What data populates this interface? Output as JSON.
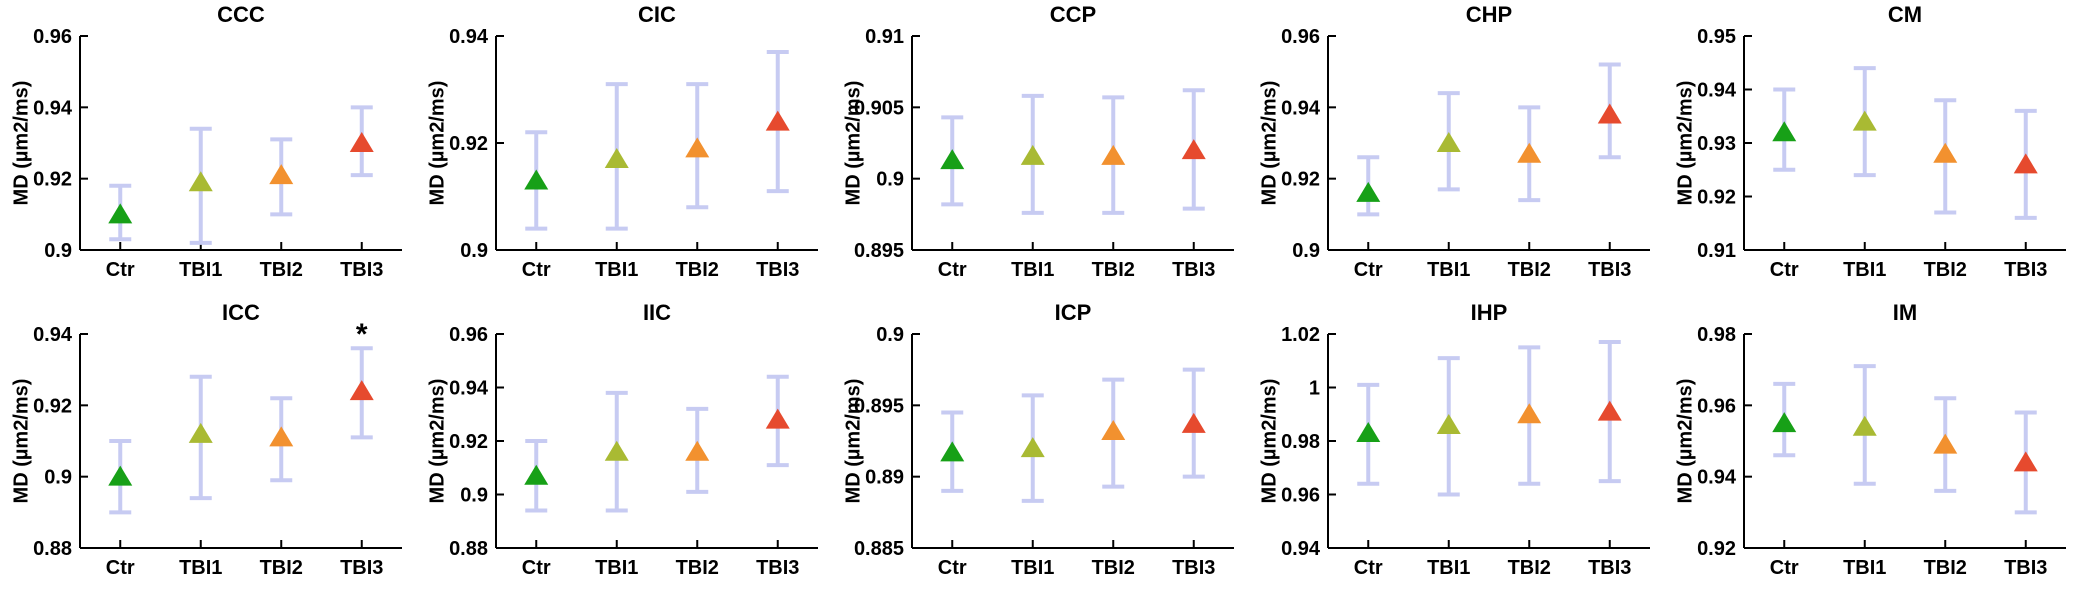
{
  "style": {
    "marker_colors": [
      "#17a017",
      "#a9ba33",
      "#f2912f",
      "#e64a2e"
    ],
    "errorbar_color": "#c7cbf2",
    "axis_color": "#000000"
  },
  "chart_data": [
    {
      "type": "scatter",
      "title": "CCC",
      "ylabel": "MD (µm2/ms)",
      "categories": [
        "Ctr",
        "TBI1",
        "TBI2",
        "TBI3"
      ],
      "ylim": [
        0.9,
        0.96
      ],
      "yticks": [
        0.9,
        0.92,
        0.94,
        0.96
      ],
      "values": [
        0.91,
        0.919,
        0.921,
        0.93
      ],
      "err_lo": [
        0.903,
        0.902,
        0.91,
        0.921
      ],
      "err_hi": [
        0.918,
        0.934,
        0.931,
        0.94
      ],
      "annotation": null
    },
    {
      "type": "scatter",
      "title": "CIC",
      "ylabel": "MD (µm2/ms)",
      "categories": [
        "Ctr",
        "TBI1",
        "TBI2",
        "TBI3"
      ],
      "ylim": [
        0.9,
        0.94
      ],
      "yticks": [
        0.9,
        0.92,
        0.94
      ],
      "values": [
        0.913,
        0.917,
        0.919,
        0.924
      ],
      "err_lo": [
        0.904,
        0.904,
        0.908,
        0.911
      ],
      "err_hi": [
        0.922,
        0.931,
        0.931,
        0.937
      ],
      "annotation": null
    },
    {
      "type": "scatter",
      "title": "CCP",
      "ylabel": "MD (µm2/ms)",
      "categories": [
        "Ctr",
        "TBI1",
        "TBI2",
        "TBI3"
      ],
      "ylim": [
        0.895,
        0.91
      ],
      "yticks": [
        0.895,
        0.9,
        0.905,
        0.91
      ],
      "values": [
        0.9013,
        0.9016,
        0.9016,
        0.902
      ],
      "err_lo": [
        0.8982,
        0.8976,
        0.8976,
        0.8979
      ],
      "err_hi": [
        0.9043,
        0.9058,
        0.9057,
        0.9062
      ],
      "annotation": null
    },
    {
      "type": "scatter",
      "title": "CHP",
      "ylabel": "MD (µm2/ms)",
      "categories": [
        "Ctr",
        "TBI1",
        "TBI2",
        "TBI3"
      ],
      "ylim": [
        0.9,
        0.96
      ],
      "yticks": [
        0.9,
        0.92,
        0.94,
        0.96
      ],
      "values": [
        0.916,
        0.93,
        0.927,
        0.938
      ],
      "err_lo": [
        0.91,
        0.917,
        0.914,
        0.926
      ],
      "err_hi": [
        0.926,
        0.944,
        0.94,
        0.952
      ],
      "annotation": null
    },
    {
      "type": "scatter",
      "title": "CM",
      "ylabel": "MD (µm2/ms)",
      "categories": [
        "Ctr",
        "TBI1",
        "TBI2",
        "TBI3"
      ],
      "ylim": [
        0.91,
        0.95
      ],
      "yticks": [
        0.91,
        0.92,
        0.93,
        0.94,
        0.95
      ],
      "values": [
        0.932,
        0.934,
        0.928,
        0.926
      ],
      "err_lo": [
        0.925,
        0.924,
        0.917,
        0.916
      ],
      "err_hi": [
        0.94,
        0.944,
        0.938,
        0.936
      ],
      "annotation": null
    },
    {
      "type": "scatter",
      "title": "ICC",
      "ylabel": "MD (µm2/ms)",
      "categories": [
        "Ctr",
        "TBI1",
        "TBI2",
        "TBI3"
      ],
      "ylim": [
        0.88,
        0.94
      ],
      "yticks": [
        0.88,
        0.9,
        0.92,
        0.94
      ],
      "values": [
        0.9,
        0.912,
        0.911,
        0.924
      ],
      "err_lo": [
        0.89,
        0.894,
        0.899,
        0.911
      ],
      "err_hi": [
        0.91,
        0.928,
        0.922,
        0.936
      ],
      "annotation": {
        "text": "*",
        "category_index": 3
      }
    },
    {
      "type": "scatter",
      "title": "IIC",
      "ylabel": "MD (µm2/ms)",
      "categories": [
        "Ctr",
        "TBI1",
        "TBI2",
        "TBI3"
      ],
      "ylim": [
        0.88,
        0.96
      ],
      "yticks": [
        0.88,
        0.9,
        0.92,
        0.94,
        0.96
      ],
      "values": [
        0.907,
        0.916,
        0.916,
        0.928
      ],
      "err_lo": [
        0.894,
        0.894,
        0.901,
        0.911
      ],
      "err_hi": [
        0.92,
        0.938,
        0.932,
        0.944
      ],
      "annotation": null
    },
    {
      "type": "scatter",
      "title": "ICP",
      "ylabel": "MD (µm2/ms)",
      "categories": [
        "Ctr",
        "TBI1",
        "TBI2",
        "TBI3"
      ],
      "ylim": [
        0.885,
        0.9
      ],
      "yticks": [
        0.885,
        0.89,
        0.895,
        0.9
      ],
      "values": [
        0.8917,
        0.892,
        0.8932,
        0.8937
      ],
      "err_lo": [
        0.889,
        0.8883,
        0.8893,
        0.89
      ],
      "err_hi": [
        0.8945,
        0.8957,
        0.8968,
        0.8975
      ],
      "annotation": null
    },
    {
      "type": "scatter",
      "title": "IHP",
      "ylabel": "MD (µm2/ms)",
      "categories": [
        "Ctr",
        "TBI1",
        "TBI2",
        "TBI3"
      ],
      "ylim": [
        0.94,
        1.02
      ],
      "yticks": [
        0.94,
        0.96,
        0.98,
        1,
        1.02
      ],
      "values": [
        0.983,
        0.986,
        0.99,
        0.991
      ],
      "err_lo": [
        0.964,
        0.96,
        0.964,
        0.965
      ],
      "err_hi": [
        1.001,
        1.011,
        1.015,
        1.017
      ],
      "annotation": null
    },
    {
      "type": "scatter",
      "title": "IM",
      "ylabel": "MD (µm2/ms)",
      "categories": [
        "Ctr",
        "TBI1",
        "TBI2",
        "TBI3"
      ],
      "ylim": [
        0.92,
        0.98
      ],
      "yticks": [
        0.92,
        0.94,
        0.96,
        0.98
      ],
      "values": [
        0.955,
        0.954,
        0.949,
        0.944
      ],
      "err_lo": [
        0.946,
        0.938,
        0.936,
        0.93
      ],
      "err_hi": [
        0.966,
        0.971,
        0.962,
        0.958
      ],
      "annotation": null
    }
  ]
}
